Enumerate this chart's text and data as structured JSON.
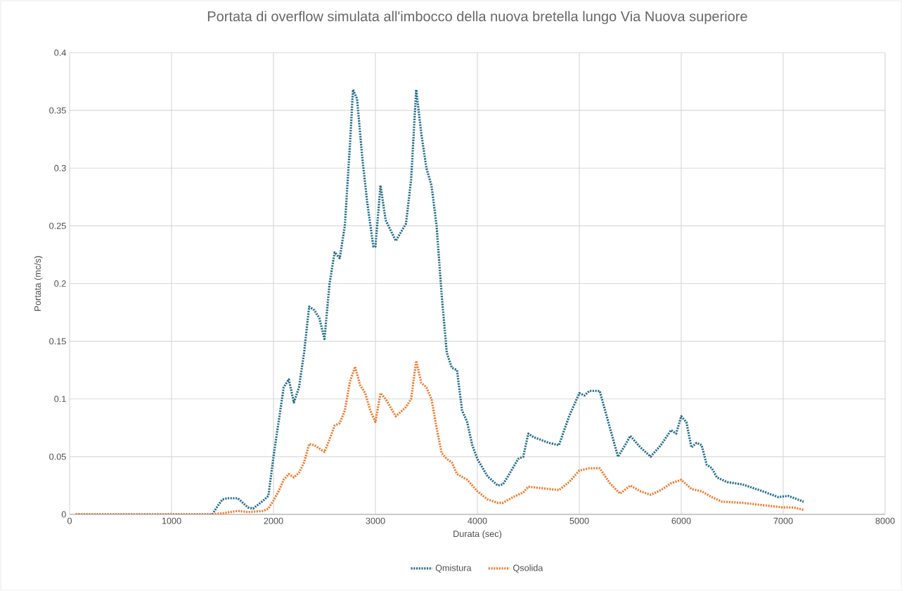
{
  "chart_data": {
    "type": "line",
    "title": "Portata di overflow simulata all'imbocco della nuova bretella lungo Via Nuova superiore",
    "xlabel": "Durata (sec)",
    "ylabel": "Portata (mc/s)",
    "xlim": [
      0,
      8000
    ],
    "xticks": [
      0,
      1000,
      2000,
      3000,
      4000,
      5000,
      6000,
      7000,
      8000
    ],
    "ylim": [
      0,
      0.4
    ],
    "yticks": [
      0,
      0.05,
      0.1,
      0.15,
      0.2,
      0.25,
      0.3,
      0.35,
      0.4
    ],
    "grid": true,
    "legend": "bottom",
    "line_style": "dotted",
    "series": [
      {
        "name": "Qmistura",
        "color": "#216d89",
        "x": [
          60,
          1400,
          1450,
          1500,
          1550,
          1650,
          1700,
          1750,
          1800,
          1900,
          1950,
          2000,
          2050,
          2100,
          2150,
          2200,
          2250,
          2300,
          2350,
          2400,
          2450,
          2500,
          2550,
          2600,
          2650,
          2700,
          2750,
          2780,
          2820,
          2870,
          2920,
          2980,
          3000,
          3050,
          3100,
          3200,
          3300,
          3350,
          3400,
          3450,
          3500,
          3550,
          3600,
          3650,
          3700,
          3750,
          3800,
          3850,
          3900,
          3950,
          4000,
          4100,
          4200,
          4250,
          4300,
          4400,
          4450,
          4500,
          4550,
          4700,
          4800,
          4900,
          5000,
          5050,
          5100,
          5200,
          5300,
          5380,
          5450,
          5500,
          5600,
          5700,
          5800,
          5900,
          5950,
          6000,
          6050,
          6100,
          6150,
          6200,
          6250,
          6300,
          6350,
          6450,
          6600,
          6700,
          6800,
          6950,
          7050,
          7200
        ],
        "values": [
          0,
          0,
          0.007,
          0.013,
          0.014,
          0.014,
          0.01,
          0.006,
          0.005,
          0.012,
          0.016,
          0.05,
          0.08,
          0.11,
          0.117,
          0.097,
          0.11,
          0.14,
          0.18,
          0.177,
          0.17,
          0.152,
          0.2,
          0.227,
          0.222,
          0.25,
          0.32,
          0.368,
          0.36,
          0.31,
          0.27,
          0.232,
          0.232,
          0.285,
          0.255,
          0.237,
          0.252,
          0.29,
          0.368,
          0.33,
          0.3,
          0.285,
          0.25,
          0.19,
          0.14,
          0.127,
          0.125,
          0.09,
          0.08,
          0.06,
          0.048,
          0.033,
          0.025,
          0.026,
          0.033,
          0.048,
          0.05,
          0.07,
          0.067,
          0.062,
          0.06,
          0.085,
          0.105,
          0.103,
          0.107,
          0.107,
          0.075,
          0.05,
          0.06,
          0.068,
          0.058,
          0.05,
          0.06,
          0.073,
          0.07,
          0.085,
          0.08,
          0.058,
          0.062,
          0.06,
          0.043,
          0.04,
          0.032,
          0.028,
          0.026,
          0.023,
          0.02,
          0.015,
          0.016,
          0.011
        ]
      },
      {
        "name": "Qsolida",
        "color": "#ed7d31",
        "x": [
          60,
          1400,
          1500,
          1650,
          1750,
          1900,
          1950,
          2000,
          2050,
          2100,
          2150,
          2200,
          2250,
          2300,
          2350,
          2400,
          2450,
          2500,
          2550,
          2600,
          2650,
          2700,
          2750,
          2800,
          2850,
          2900,
          2950,
          3000,
          3050,
          3100,
          3200,
          3300,
          3350,
          3400,
          3450,
          3500,
          3550,
          3600,
          3650,
          3700,
          3750,
          3800,
          3900,
          4000,
          4100,
          4200,
          4250,
          4350,
          4450,
          4500,
          4700,
          4800,
          4900,
          5000,
          5100,
          5200,
          5300,
          5400,
          5500,
          5600,
          5700,
          5800,
          5900,
          6000,
          6100,
          6200,
          6300,
          6400,
          6600,
          6800,
          7000,
          7100,
          7200
        ],
        "values": [
          0,
          0,
          0.001,
          0.003,
          0.002,
          0.003,
          0.005,
          0.012,
          0.02,
          0.03,
          0.035,
          0.032,
          0.036,
          0.045,
          0.061,
          0.06,
          0.057,
          0.054,
          0.065,
          0.077,
          0.079,
          0.09,
          0.115,
          0.128,
          0.112,
          0.105,
          0.09,
          0.08,
          0.105,
          0.1,
          0.085,
          0.093,
          0.1,
          0.133,
          0.114,
          0.11,
          0.1,
          0.075,
          0.053,
          0.048,
          0.045,
          0.035,
          0.03,
          0.02,
          0.013,
          0.01,
          0.01,
          0.015,
          0.019,
          0.024,
          0.022,
          0.021,
          0.028,
          0.038,
          0.04,
          0.04,
          0.027,
          0.018,
          0.025,
          0.02,
          0.017,
          0.021,
          0.027,
          0.03,
          0.022,
          0.02,
          0.015,
          0.011,
          0.01,
          0.008,
          0.006,
          0.006,
          0.004
        ]
      }
    ]
  }
}
